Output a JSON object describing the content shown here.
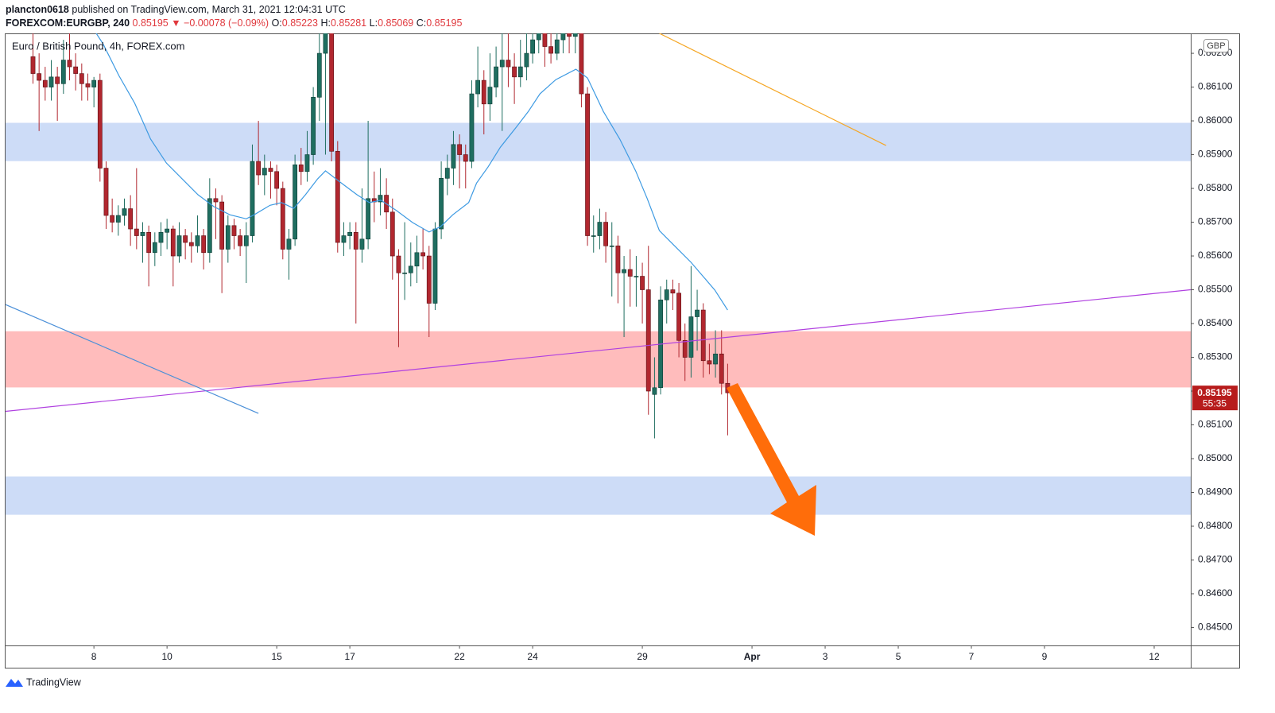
{
  "header": {
    "user": "plancton0618",
    "published": "published on TradingView.com, March 31, 2021 12:04:31 UTC",
    "symbol": "FOREXCOM:EURGBP, 240",
    "price": "0.85195",
    "change": "▼ −0.00078 (−0.09%)",
    "ohlc": [
      {
        "key": "O:",
        "value": "0.85223"
      },
      {
        "key": "H:",
        "value": "0.85281"
      },
      {
        "key": "L:",
        "value": "0.85069"
      },
      {
        "key": "C:",
        "value": "0.85195"
      }
    ]
  },
  "footer": {
    "brand": "TradingView"
  },
  "chart_data": {
    "type": "candlestick",
    "title": "Euro / British Pound, 4h, FOREX.com",
    "currency": "GBP",
    "up_color": "#1f6e60",
    "down_color": "#b1272f",
    "grid": false,
    "candles": [
      [
        0.8619,
        0.8628,
        0.8611,
        0.8614
      ],
      [
        0.8614,
        0.862,
        0.8597,
        0.8612
      ],
      [
        0.8612,
        0.8616,
        0.8606,
        0.861
      ],
      [
        0.861,
        0.8618,
        0.8606,
        0.8613
      ],
      [
        0.8613,
        0.8616,
        0.86,
        0.8611
      ],
      [
        0.8611,
        0.8624,
        0.8608,
        0.8618
      ],
      [
        0.8618,
        0.8626,
        0.8612,
        0.8616
      ],
      [
        0.8616,
        0.862,
        0.8609,
        0.8614
      ],
      [
        0.8614,
        0.8617,
        0.8606,
        0.8611
      ],
      [
        0.8611,
        0.8614,
        0.8606,
        0.861
      ],
      [
        0.861,
        0.8613,
        0.8604,
        0.8612
      ],
      [
        0.8612,
        0.8614,
        0.8582,
        0.8586
      ],
      [
        0.8586,
        0.8588,
        0.8568,
        0.8572
      ],
      [
        0.8572,
        0.8577,
        0.8567,
        0.857
      ],
      [
        0.857,
        0.8575,
        0.8566,
        0.8572
      ],
      [
        0.8572,
        0.8577,
        0.8569,
        0.8574
      ],
      [
        0.8574,
        0.8578,
        0.8563,
        0.8568
      ],
      [
        0.8568,
        0.8586,
        0.8562,
        0.8566
      ],
      [
        0.8566,
        0.857,
        0.8558,
        0.8567
      ],
      [
        0.8567,
        0.8569,
        0.8551,
        0.8561
      ],
      [
        0.8561,
        0.8567,
        0.8557,
        0.8564
      ],
      [
        0.8564,
        0.857,
        0.856,
        0.8567
      ],
      [
        0.8567,
        0.8571,
        0.8562,
        0.8568
      ],
      [
        0.8568,
        0.8569,
        0.8551,
        0.856
      ],
      [
        0.856,
        0.857,
        0.8558,
        0.8566
      ],
      [
        0.8566,
        0.8568,
        0.8559,
        0.8564
      ],
      [
        0.8564,
        0.8567,
        0.8558,
        0.8563
      ],
      [
        0.8563,
        0.8572,
        0.8561,
        0.8566
      ],
      [
        0.8566,
        0.8568,
        0.8556,
        0.8561
      ],
      [
        0.8561,
        0.8583,
        0.8558,
        0.8577
      ],
      [
        0.8577,
        0.858,
        0.8565,
        0.8576
      ],
      [
        0.8576,
        0.8578,
        0.8549,
        0.8562
      ],
      [
        0.8562,
        0.8572,
        0.8558,
        0.8569
      ],
      [
        0.8569,
        0.8571,
        0.8562,
        0.8566
      ],
      [
        0.8566,
        0.8568,
        0.856,
        0.8563
      ],
      [
        0.8563,
        0.857,
        0.8552,
        0.8566
      ],
      [
        0.8566,
        0.8593,
        0.8564,
        0.8588
      ],
      [
        0.8588,
        0.86,
        0.8581,
        0.8584
      ],
      [
        0.8584,
        0.859,
        0.8578,
        0.8586
      ],
      [
        0.8586,
        0.8588,
        0.8577,
        0.8585
      ],
      [
        0.8585,
        0.8587,
        0.8575,
        0.858
      ],
      [
        0.858,
        0.8582,
        0.8559,
        0.8562
      ],
      [
        0.8562,
        0.8568,
        0.8553,
        0.8565
      ],
      [
        0.8565,
        0.859,
        0.8563,
        0.8587
      ],
      [
        0.8587,
        0.8592,
        0.8581,
        0.8585
      ],
      [
        0.8585,
        0.8597,
        0.8582,
        0.859
      ],
      [
        0.859,
        0.861,
        0.8587,
        0.8607
      ],
      [
        0.8607,
        0.863,
        0.86,
        0.862
      ],
      [
        0.862,
        0.8632,
        0.859,
        0.8626
      ],
      [
        0.8626,
        0.8628,
        0.8588,
        0.8591
      ],
      [
        0.8591,
        0.8594,
        0.8561,
        0.8564
      ],
      [
        0.8564,
        0.857,
        0.856,
        0.8566
      ],
      [
        0.8566,
        0.857,
        0.8562,
        0.8567
      ],
      [
        0.8567,
        0.857,
        0.854,
        0.8562
      ],
      [
        0.8562,
        0.858,
        0.8558,
        0.8565
      ],
      [
        0.8565,
        0.86,
        0.8562,
        0.8577
      ],
      [
        0.8577,
        0.8585,
        0.857,
        0.8576
      ],
      [
        0.8576,
        0.8586,
        0.8572,
        0.8578
      ],
      [
        0.8578,
        0.8583,
        0.8568,
        0.8573
      ],
      [
        0.8573,
        0.8577,
        0.8553,
        0.856
      ],
      [
        0.856,
        0.8562,
        0.8533,
        0.8555
      ],
      [
        0.8555,
        0.857,
        0.8547,
        0.8555
      ],
      [
        0.8555,
        0.8564,
        0.8551,
        0.8557
      ],
      [
        0.8557,
        0.8566,
        0.8552,
        0.8561
      ],
      [
        0.8561,
        0.8568,
        0.8556,
        0.856
      ],
      [
        0.856,
        0.8563,
        0.8536,
        0.8546
      ],
      [
        0.8546,
        0.857,
        0.8544,
        0.8568
      ],
      [
        0.8568,
        0.8588,
        0.8565,
        0.8583
      ],
      [
        0.8583,
        0.859,
        0.8578,
        0.8586
      ],
      [
        0.8586,
        0.8597,
        0.8581,
        0.8593
      ],
      [
        0.8593,
        0.8596,
        0.858,
        0.859
      ],
      [
        0.859,
        0.8593,
        0.858,
        0.8588
      ],
      [
        0.8588,
        0.8612,
        0.8586,
        0.8608
      ],
      [
        0.8608,
        0.8622,
        0.8604,
        0.8612
      ],
      [
        0.8612,
        0.8615,
        0.8596,
        0.8605
      ],
      [
        0.8605,
        0.862,
        0.86,
        0.861
      ],
      [
        0.861,
        0.8622,
        0.8607,
        0.8616
      ],
      [
        0.8616,
        0.8628,
        0.8597,
        0.8618
      ],
      [
        0.8618,
        0.8626,
        0.861,
        0.8616
      ],
      [
        0.8616,
        0.862,
        0.8605,
        0.8613
      ],
      [
        0.8613,
        0.8624,
        0.861,
        0.8616
      ],
      [
        0.8616,
        0.8628,
        0.8612,
        0.862
      ],
      [
        0.862,
        0.863,
        0.8617,
        0.8624
      ],
      [
        0.8624,
        0.8632,
        0.862,
        0.8626
      ],
      [
        0.8626,
        0.863,
        0.8616,
        0.8622
      ],
      [
        0.8622,
        0.8628,
        0.8617,
        0.862
      ],
      [
        0.862,
        0.863,
        0.8618,
        0.8624
      ],
      [
        0.8624,
        0.8632,
        0.862,
        0.8626
      ],
      [
        0.8626,
        0.8631,
        0.862,
        0.8625
      ],
      [
        0.8625,
        0.8632,
        0.862,
        0.8627
      ],
      [
        0.8627,
        0.863,
        0.8604,
        0.8608
      ],
      [
        0.8608,
        0.861,
        0.8563,
        0.8566
      ],
      [
        0.8566,
        0.8572,
        0.8561,
        0.8566
      ],
      [
        0.8566,
        0.8574,
        0.8562,
        0.857
      ],
      [
        0.857,
        0.8573,
        0.8558,
        0.8563
      ],
      [
        0.8563,
        0.857,
        0.8548,
        0.8563
      ],
      [
        0.8563,
        0.8566,
        0.8546,
        0.8555
      ],
      [
        0.8555,
        0.856,
        0.8536,
        0.8556
      ],
      [
        0.8556,
        0.8562,
        0.8545,
        0.8554
      ],
      [
        0.8554,
        0.856,
        0.8545,
        0.8554
      ],
      [
        0.8554,
        0.8558,
        0.854,
        0.855
      ],
      [
        0.855,
        0.8563,
        0.8513,
        0.852
      ],
      [
        0.8519,
        0.853,
        0.8506,
        0.8521
      ],
      [
        0.8521,
        0.8551,
        0.8519,
        0.8547
      ],
      [
        0.8547,
        0.8553,
        0.854,
        0.855
      ],
      [
        0.855,
        0.8553,
        0.8544,
        0.8549
      ],
      [
        0.8549,
        0.8552,
        0.853,
        0.8535
      ],
      [
        0.8535,
        0.854,
        0.8523,
        0.853
      ],
      [
        0.853,
        0.8557,
        0.8524,
        0.8542
      ],
      [
        0.8542,
        0.855,
        0.8532,
        0.8544
      ],
      [
        0.8544,
        0.8546,
        0.8524,
        0.8529
      ],
      [
        0.8529,
        0.8534,
        0.8525,
        0.8528
      ],
      [
        0.8528,
        0.8538,
        0.8524,
        0.8531
      ],
      [
        0.8531,
        0.8538,
        0.8519,
        0.85223
      ],
      [
        0.85223,
        0.85281,
        0.85069,
        0.85195
      ]
    ],
    "moving_average": {
      "color": "#3d9ae2",
      "x": [
        10.2,
        11.5,
        14.1,
        16.7,
        19.3,
        21.9,
        24.5,
        27.1,
        29.7,
        32.3,
        35.0,
        36.3,
        38.9,
        40.8,
        42.8,
        44.7,
        46.7,
        48.0,
        50.6,
        53.2,
        55.2,
        57.1,
        59.7,
        62.3,
        65.0,
        66.9,
        68.9,
        71.5,
        72.8,
        74.7,
        76.7,
        79.3,
        81.3,
        83.2,
        85.8,
        89.1,
        91.0,
        93.6,
        96.3,
        98.9,
        100.8,
        102.8,
        105.4,
        108.0,
        110.0,
        111.9,
        114.0
      ],
      "values": [
        0.86264,
        0.86228,
        0.86134,
        0.86052,
        0.85946,
        0.85875,
        0.85828,
        0.85781,
        0.85746,
        0.85722,
        0.8571,
        0.85722,
        0.8575,
        0.85758,
        0.85741,
        0.85781,
        0.85828,
        0.85852,
        0.85816,
        0.85781,
        0.85758,
        0.85765,
        0.85734,
        0.85699,
        0.85671,
        0.85687,
        0.85722,
        0.85758,
        0.85816,
        0.85864,
        0.85922,
        0.85981,
        0.86028,
        0.8608,
        0.86122,
        0.86153,
        0.86127,
        0.86028,
        0.85946,
        0.85852,
        0.8577,
        0.85675,
        0.85628,
        0.85581,
        0.85539,
        0.85499,
        0.8544
      ]
    },
    "zones": [
      {
        "from": 0.85993,
        "to": 0.85882,
        "color": "#cddcf7"
      },
      {
        "from": 0.85376,
        "to": 0.85212,
        "color": "#ffbcbc"
      },
      {
        "from": 0.84946,
        "to": 0.84835,
        "color": "#cddcf7"
      }
    ],
    "trend_lines": [
      {
        "x": [
          -4.5,
          190
        ],
        "values": [
          0.8514,
          0.855
        ],
        "color": "#b040e0"
      },
      {
        "x": [
          102.8,
          140.0
        ],
        "values": [
          0.86259,
          0.85927
        ],
        "color": "#f5a623"
      },
      {
        "x": [
          -4.5,
          37.0
        ],
        "values": [
          0.85456,
          0.85134
        ],
        "color": "#4a8fd8"
      }
    ],
    "last_price": 0.85195,
    "countdown": "55:35",
    "xlim": [
      -4.5,
      190
    ],
    "xticks": [
      {
        "value": 10,
        "label": "8"
      },
      {
        "value": 22,
        "label": "10"
      },
      {
        "value": 40,
        "label": "15"
      },
      {
        "value": 52,
        "label": "17"
      },
      {
        "value": 70,
        "label": "22"
      },
      {
        "value": 82,
        "label": "24"
      },
      {
        "value": 100,
        "label": "29"
      },
      {
        "value": 118,
        "label": "Apr"
      },
      {
        "value": 130,
        "label": "3"
      },
      {
        "value": 142,
        "label": "5"
      },
      {
        "value": 154,
        "label": "7"
      },
      {
        "value": 166,
        "label": "9"
      },
      {
        "value": 184,
        "label": "12"
      }
    ],
    "ylim": [
      0.84447,
      0.86259
    ],
    "yticks": [
      {
        "value": 0.845,
        "label": "0.84500"
      },
      {
        "value": 0.846,
        "label": "0.84600"
      },
      {
        "value": 0.847,
        "label": "0.84700"
      },
      {
        "value": 0.848,
        "label": "0.84800"
      },
      {
        "value": 0.849,
        "label": "0.84900"
      },
      {
        "value": 0.85,
        "label": "0.85000"
      },
      {
        "value": 0.851,
        "label": "0.85100"
      },
      {
        "value": 0.852,
        "label": "0.85200"
      },
      {
        "value": 0.853,
        "label": "0.85300"
      },
      {
        "value": 0.854,
        "label": "0.85400"
      },
      {
        "value": 0.855,
        "label": "0.85500"
      },
      {
        "value": 0.856,
        "label": "0.85600"
      },
      {
        "value": 0.857,
        "label": "0.85700"
      },
      {
        "value": 0.858,
        "label": "0.85800"
      },
      {
        "value": 0.859,
        "label": "0.85900"
      },
      {
        "value": 0.86,
        "label": "0.86000"
      },
      {
        "value": 0.861,
        "label": "0.86100"
      },
      {
        "value": 0.862,
        "label": "0.86200"
      }
    ]
  }
}
